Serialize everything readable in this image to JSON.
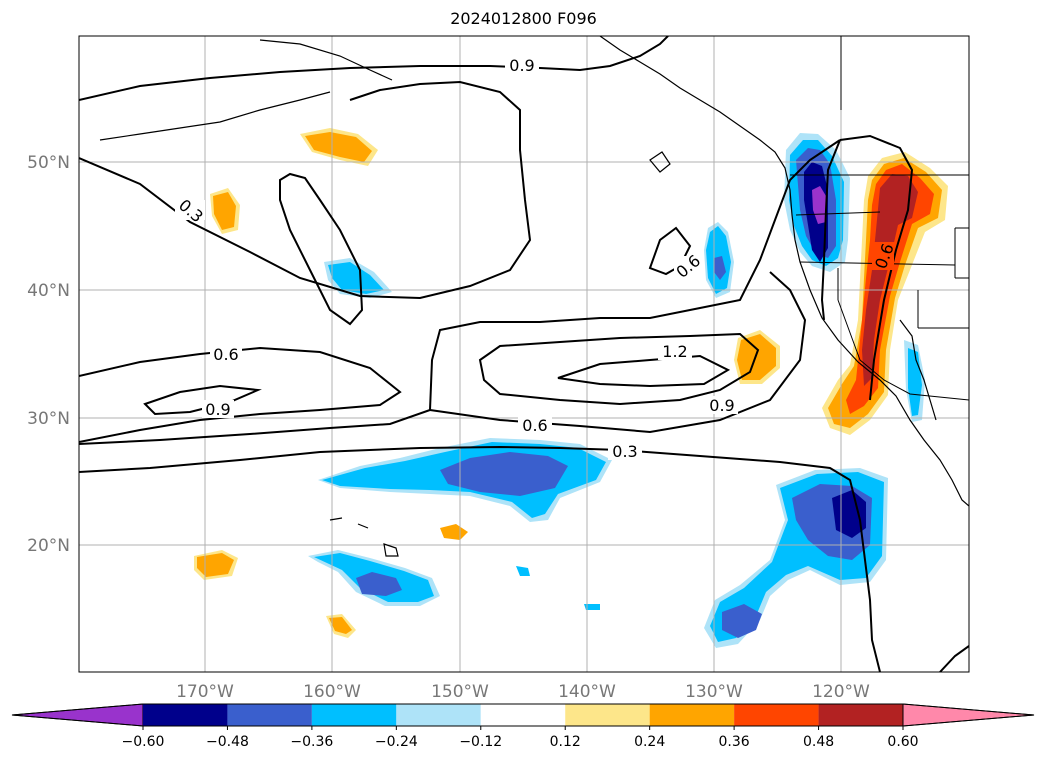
{
  "title": "2024012800 F096",
  "lat_labels": [
    "50°N",
    "40°N",
    "30°N",
    "20°N"
  ],
  "lon_labels": [
    "170°W",
    "160°W",
    "150°W",
    "140°W",
    "130°W",
    "120°W"
  ],
  "contour_labels": [
    "0.9",
    "0.3",
    "0.6",
    "0.9",
    "1.2",
    "0.9",
    "0.6",
    "0.3",
    "0.6",
    "0.6"
  ],
  "colorbar": {
    "ticks": [
      "−0.60",
      "−0.48",
      "−0.36",
      "−0.24",
      "−0.12",
      "0.12",
      "0.24",
      "0.36",
      "0.48",
      "0.60"
    ],
    "colors": [
      "#9933cc",
      "#00008b",
      "#3a5fcd",
      "#00bfff",
      "#aee3f8",
      "#ffffff",
      "#fde68a",
      "#ffa500",
      "#ff4500",
      "#b22222",
      "#ff88aa"
    ]
  }
}
